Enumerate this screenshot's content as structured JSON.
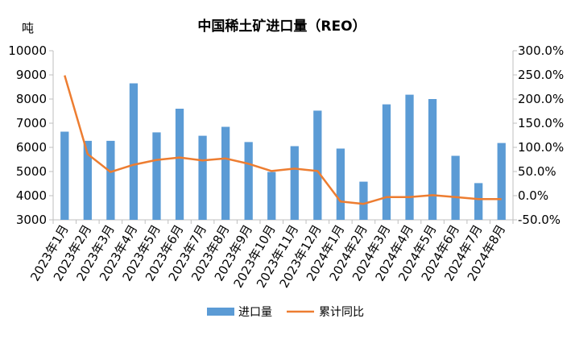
{
  "chart_data": {
    "type": "bar+line",
    "title": "中国稀土矿进口量（REO）",
    "y_unit_label": "吨",
    "categories": [
      "2023年1月",
      "2023年2月",
      "2023年3月",
      "2023年4月",
      "2023年5月",
      "2023年6月",
      "2023年7月",
      "2023年8月",
      "2023年9月",
      "2023年10月",
      "2023年11月",
      "2023年12月",
      "2024年1月",
      "2024年2月",
      "2024年3月",
      "2024年4月",
      "2024年5月",
      "2024年6月",
      "2024年7月",
      "2024年8月"
    ],
    "series": [
      {
        "name": "进口量",
        "type": "bar",
        "axis": "left",
        "color": "#5b9bd5",
        "values": [
          6650,
          6270,
          6270,
          8650,
          6620,
          7600,
          6480,
          6850,
          6220,
          4980,
          6050,
          7520,
          5950,
          4580,
          7780,
          8180,
          8000,
          5650,
          4520,
          6180
        ]
      },
      {
        "name": "累计同比",
        "type": "line",
        "axis": "right",
        "color": "#ed7d31",
        "values": [
          2.49,
          0.86,
          0.49,
          0.64,
          0.74,
          0.79,
          0.73,
          0.77,
          0.66,
          0.51,
          0.56,
          0.51,
          -0.12,
          -0.17,
          -0.03,
          -0.03,
          0.01,
          -0.03,
          -0.07,
          -0.07
        ]
      }
    ],
    "y_left": {
      "min": 3000,
      "max": 10000,
      "step": 1000
    },
    "y_right": {
      "min": -0.5,
      "max": 3.0,
      "step": 0.5,
      "format": "percent_1dp"
    },
    "grid": false,
    "legend_position": "bottom"
  }
}
